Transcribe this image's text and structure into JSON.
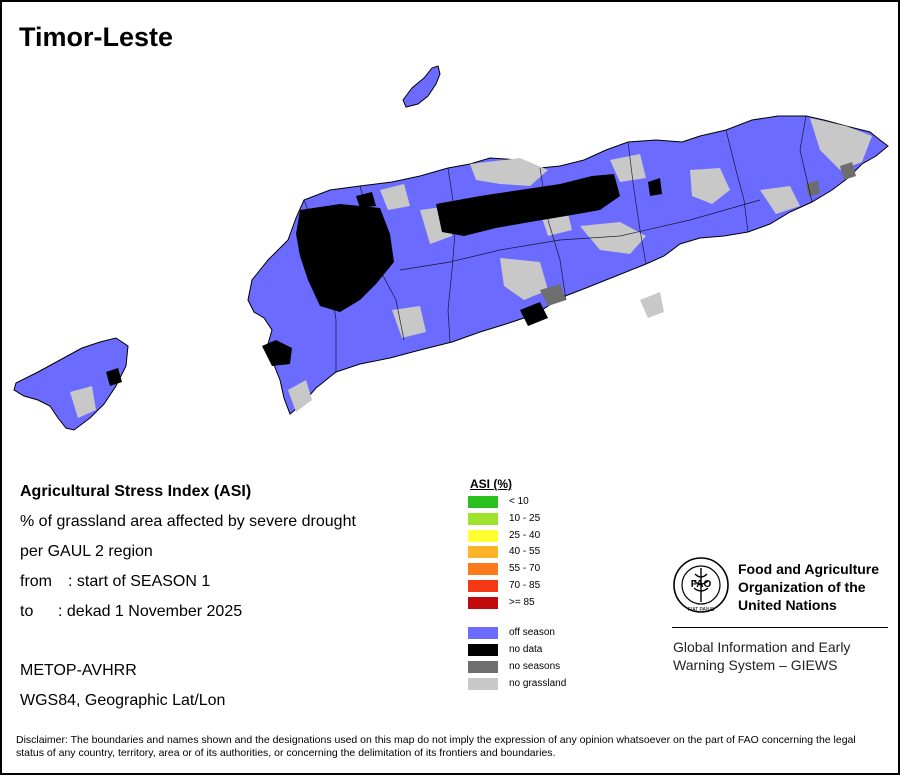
{
  "title": "Timor-Leste",
  "info": {
    "heading": "Agricultural Stress Index (ASI)",
    "line1": "% of grassland area affected by severe drought",
    "line2": "per GAUL 2 region",
    "from_label": "from",
    "from_value": ": start of SEASON 1",
    "to_label": "to",
    "to_value": ": dekad 1 November 2025",
    "sensor": "METOP-AVHRR",
    "projection": "WGS84, Geographic Lat/Lon"
  },
  "legend": {
    "title": "ASI (%)",
    "classes": [
      {
        "label": "< 10",
        "color": "#2bbf1f"
      },
      {
        "label": "10 - 25",
        "color": "#9ee32b"
      },
      {
        "label": "25 - 40",
        "color": "#ffff33"
      },
      {
        "label": "40 - 55",
        "color": "#fdb42a"
      },
      {
        "label": "55 - 70",
        "color": "#fb7a1c"
      },
      {
        "label": "70 - 85",
        "color": "#f43714"
      },
      {
        "label": ">= 85",
        "color": "#c30a0a"
      }
    ],
    "special": [
      {
        "label": "off season",
        "color": "#6b6bff"
      },
      {
        "label": "no data",
        "color": "#000000"
      },
      {
        "label": "no seasons",
        "color": "#6e6e6e"
      },
      {
        "label": "no grassland",
        "color": "#c8c8c8"
      }
    ]
  },
  "fao": {
    "line1": "Food and Agriculture",
    "line2": "Organization of the",
    "line3": "United Nations",
    "logo_text_top": "FAO",
    "logo_text_bottom": "FIAT PANIS"
  },
  "giews": {
    "line1": "Global Information and Early",
    "line2": "Warning System – GIEWS"
  },
  "disclaimer": "Disclaimer: The boundaries and names shown and the designations used on this map do not imply the expression of any opinion whatsoever on the part of FAO concerning the legal status of any country, territory, area or of its authorities, or concerning the delimitation of its frontiers and boundaries."
}
